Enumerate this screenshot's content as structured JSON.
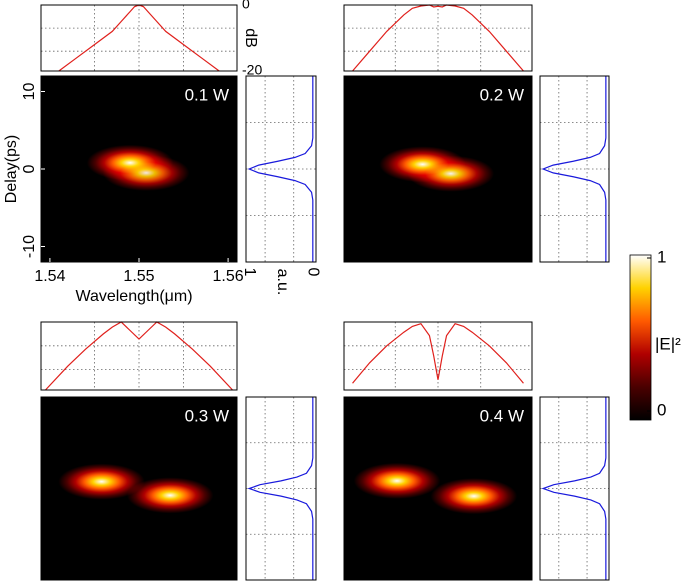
{
  "chart_data": {
    "type": "spectrogram-grid",
    "colormap": "hot",
    "xlim": [
      1.539,
      1.561
    ],
    "ylim": [
      -12,
      12
    ],
    "xticks": [
      1.54,
      1.55,
      1.56
    ],
    "yticks": [
      -10,
      0,
      10
    ],
    "xlabel": "Wavelength(μm)",
    "ylabel": "Delay(ps)",
    "spectrum_ylim": [
      -20,
      0
    ],
    "spectrum_yticks": [
      0,
      -20
    ],
    "spectrum_ylabel": "dB",
    "spectrum_xgrid": [
      1.545,
      1.55,
      1.555
    ],
    "spectrum_ygrid": [
      -7,
      -14
    ],
    "temporal_xlim": [
      1.05,
      -0.05
    ],
    "temporal_xticks": [
      1,
      0
    ],
    "temporal_xlabel": "a.u.",
    "temporal_xgrid": [
      0.75,
      0.3
    ],
    "temporal_ygrid": [
      6,
      0,
      -6
    ],
    "panels": [
      {
        "label": "0.1 W",
        "spectrum": {
          "x": [
            1.541,
            1.543,
            1.545,
            1.547,
            1.548,
            1.549,
            1.5495,
            1.55,
            1.5505,
            1.551,
            1.552,
            1.553,
            1.555,
            1.557,
            1.559
          ],
          "values": [
            -20,
            -16,
            -12,
            -8,
            -5,
            -2,
            -0.5,
            0,
            -0.5,
            -2,
            -5,
            -8,
            -12,
            -16,
            -20
          ]
        },
        "temporal": {
          "x": [
            -12,
            -4,
            -3,
            -2,
            -1.5,
            -1,
            -0.5,
            0,
            0.5,
            1,
            1.5,
            2,
            3,
            4,
            12
          ],
          "values": [
            0,
            0,
            0.02,
            0.12,
            0.28,
            0.55,
            0.85,
            1,
            0.85,
            0.55,
            0.28,
            0.12,
            0.02,
            0,
            0
          ]
        },
        "peaks": [
          {
            "x": 1.549,
            "y": 0.8,
            "amplitude": 1
          },
          {
            "x": 1.5508,
            "y": -0.5,
            "amplitude": 0.9
          }
        ]
      },
      {
        "label": "0.2 W",
        "spectrum": {
          "x": [
            1.54,
            1.542,
            1.544,
            1.546,
            1.547,
            1.548,
            1.549,
            1.5495,
            1.55,
            1.5505,
            1.551,
            1.552,
            1.553,
            1.554,
            1.556,
            1.558,
            1.56
          ],
          "values": [
            -20,
            -14,
            -8,
            -3,
            -1,
            -0.3,
            0,
            -0.6,
            -0.4,
            -0.6,
            0,
            -0.3,
            -1,
            -3,
            -8,
            -14,
            -20
          ]
        },
        "temporal": {
          "x": [
            -12,
            -4,
            -3,
            -2,
            -1.5,
            -1,
            -0.5,
            0,
            0.5,
            1,
            1.5,
            2,
            3,
            4,
            12
          ],
          "values": [
            0,
            0,
            0.02,
            0.1,
            0.25,
            0.52,
            0.84,
            1,
            0.84,
            0.52,
            0.25,
            0.1,
            0.02,
            0,
            0
          ]
        },
        "peaks": [
          {
            "x": 1.5482,
            "y": 0.6,
            "amplitude": 1
          },
          {
            "x": 1.5515,
            "y": -0.6,
            "amplitude": 0.95
          }
        ]
      },
      {
        "label": "0.3 W",
        "spectrum": {
          "x": [
            1.5395,
            1.542,
            1.544,
            1.546,
            1.547,
            1.548,
            1.549,
            1.55,
            1.551,
            1.552,
            1.553,
            1.554,
            1.556,
            1.558,
            1.5605
          ],
          "values": [
            -20,
            -13,
            -8,
            -3.5,
            -1.5,
            0,
            -2.5,
            -5,
            -2.5,
            0,
            -1.5,
            -3.5,
            -8,
            -13,
            -20
          ]
        },
        "temporal": {
          "x": [
            -12,
            -4,
            -3,
            -2,
            -1.5,
            -1,
            -0.5,
            0,
            0.5,
            1,
            1.5,
            2,
            3,
            4,
            12
          ],
          "values": [
            0,
            0,
            0.02,
            0.1,
            0.25,
            0.5,
            0.83,
            1,
            0.83,
            0.5,
            0.25,
            0.1,
            0.02,
            0,
            0
          ]
        },
        "peaks": [
          {
            "x": 1.5458,
            "y": 0.9,
            "amplitude": 1
          },
          {
            "x": 1.5535,
            "y": -0.9,
            "amplitude": 1
          }
        ]
      },
      {
        "label": "0.4 W",
        "spectrum": {
          "x": [
            1.54,
            1.542,
            1.544,
            1.546,
            1.547,
            1.548,
            1.549,
            1.5495,
            1.55,
            1.5505,
            1.551,
            1.552,
            1.553,
            1.554,
            1.556,
            1.558,
            1.56
          ],
          "values": [
            -18,
            -12,
            -7,
            -3,
            -1.3,
            -0.5,
            -4,
            -10,
            -17,
            -10,
            -4,
            -0.5,
            -1.3,
            -3,
            -7,
            -12,
            -18
          ]
        },
        "temporal": {
          "x": [
            -12,
            -4,
            -3,
            -2,
            -1.5,
            -1,
            -0.5,
            0,
            0.5,
            1,
            1.5,
            2,
            3,
            4,
            12
          ],
          "values": [
            0,
            0,
            0.02,
            0.1,
            0.24,
            0.5,
            0.83,
            1,
            0.83,
            0.5,
            0.24,
            0.1,
            0.02,
            0,
            0
          ]
        },
        "peaks": [
          {
            "x": 1.5452,
            "y": 1,
            "amplitude": 1
          },
          {
            "x": 1.5542,
            "y": -1,
            "amplitude": 1
          }
        ]
      }
    ],
    "colorbar": {
      "label": "|E|²",
      "ylim": [
        0,
        1
      ],
      "yticks": [
        1,
        0
      ]
    }
  }
}
